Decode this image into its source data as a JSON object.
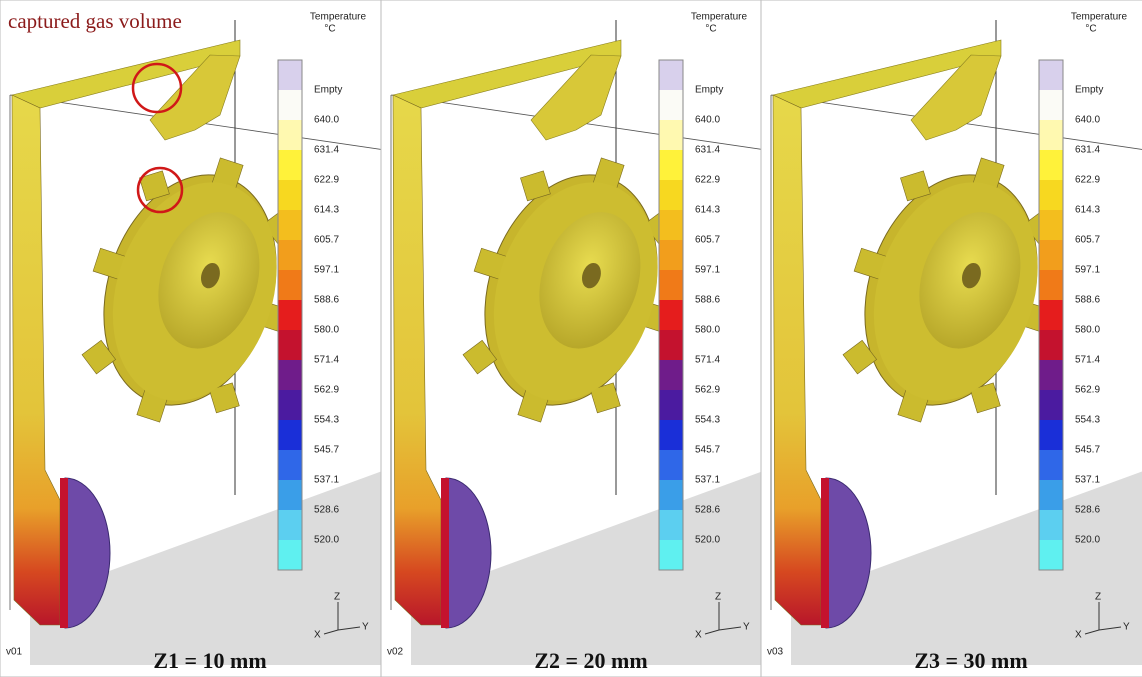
{
  "annotation": "captured gas volume",
  "legend": {
    "title": "Temperature",
    "unit": "°C",
    "labels": [
      "Empty",
      "640.0",
      "631.4",
      "622.9",
      "614.3",
      "605.7",
      "597.1",
      "588.6",
      "580.0",
      "571.4",
      "562.9",
      "554.3",
      "545.7",
      "537.1",
      "528.6",
      "520.0"
    ],
    "colors": [
      "#d8d0ec",
      "#fbfbf6",
      "#fff9b0",
      "#fff23a",
      "#f7d820",
      "#f3be1e",
      "#f29e1c",
      "#f07a18",
      "#e51d1d",
      "#c4122e",
      "#6f1c8a",
      "#4b1ba0",
      "#1a2fd8",
      "#2f67e8",
      "#3a9ee8",
      "#5ccff0",
      "#5ff0f0"
    ]
  },
  "axes": {
    "x": "X",
    "y": "Y",
    "z": "Z"
  },
  "panels": [
    {
      "id": "v01",
      "caption": "Z1 = 10 mm"
    },
    {
      "id": "v02",
      "caption": "Z2 = 20 mm"
    },
    {
      "id": "v03",
      "caption": "Z3 = 30 mm"
    }
  ]
}
